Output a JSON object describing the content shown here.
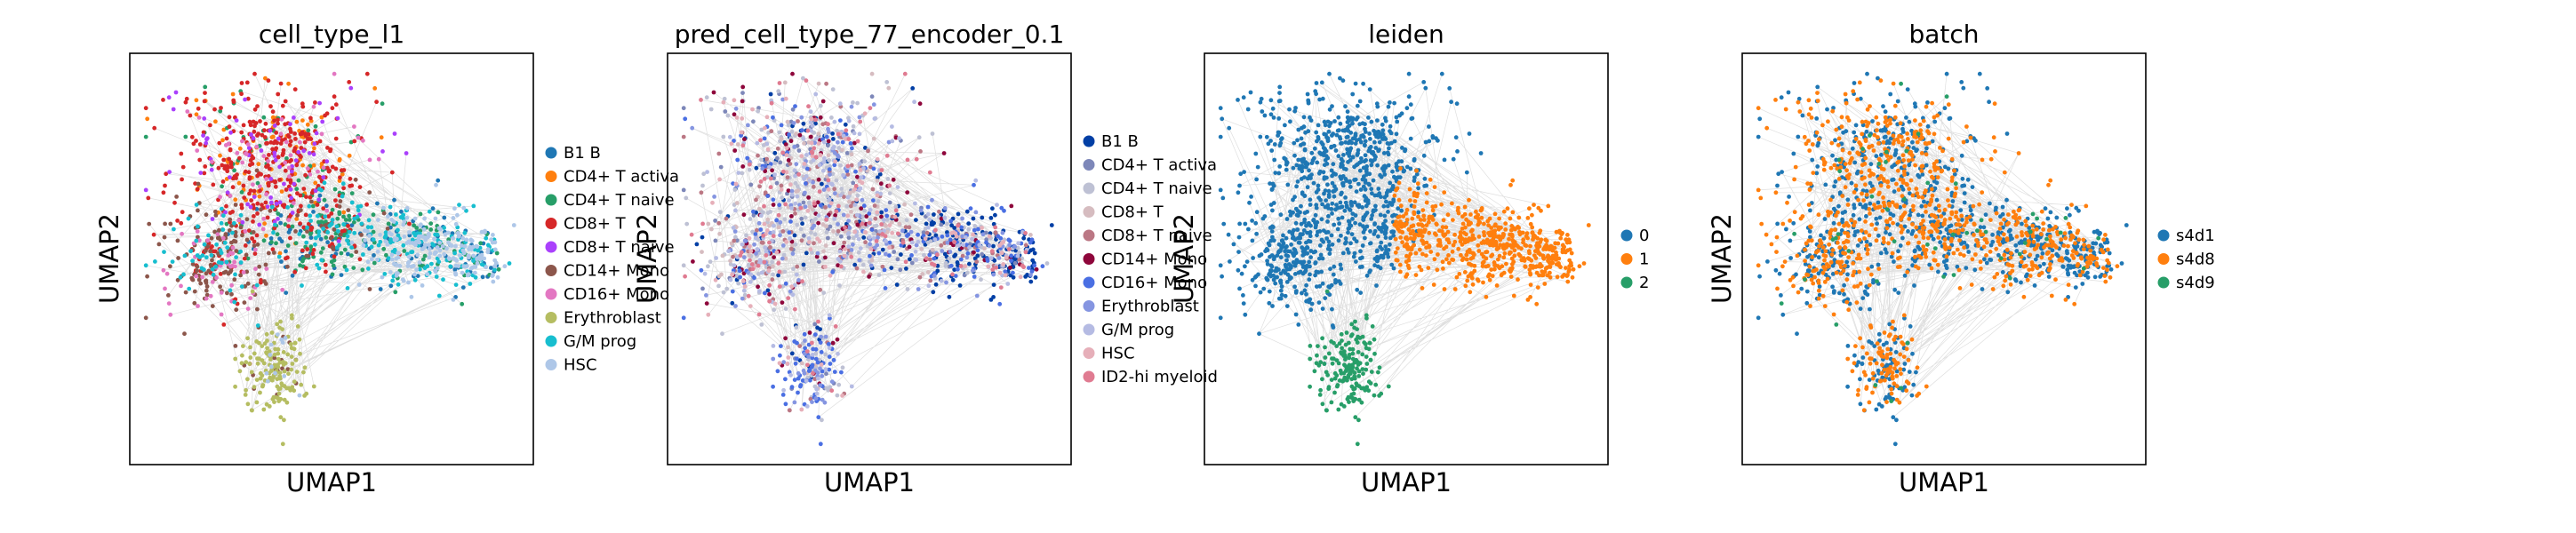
{
  "chart_data": [
    {
      "type": "scatter",
      "title": "cell_type_l1",
      "xlabel": "UMAP1",
      "ylabel": "UMAP2",
      "grid": false,
      "legend_position": "right",
      "legend": [
        {
          "label": "B1 B",
          "color": "#1f77b4"
        },
        {
          "label": "CD4+ T activa",
          "color": "#ff7f0e"
        },
        {
          "label": "CD4+ T naive",
          "color": "#279e68"
        },
        {
          "label": "CD8+ T",
          "color": "#d62728"
        },
        {
          "label": "CD8+ T naive",
          "color": "#aa40fc"
        },
        {
          "label": "CD14+ Mono",
          "color": "#8c564b"
        },
        {
          "label": "CD16+ Mono",
          "color": "#e377c2"
        },
        {
          "label": "Erythroblast",
          "color": "#b5bd61"
        },
        {
          "label": "G/M prog",
          "color": "#17becf"
        },
        {
          "label": "HSC",
          "color": "#aec7e8"
        }
      ]
    },
    {
      "type": "scatter",
      "title": "pred_cell_type_77_encoder_0.1",
      "xlabel": "UMAP1",
      "ylabel": "UMAP2",
      "grid": false,
      "legend_position": "right",
      "legend": [
        {
          "label": "B1 B",
          "color": "#023fa5"
        },
        {
          "label": "CD4+ T activa",
          "color": "#7d87b9"
        },
        {
          "label": "CD4+ T naive",
          "color": "#bec1d4"
        },
        {
          "label": "CD8+ T",
          "color": "#d6bcc0"
        },
        {
          "label": "CD8+ T naive",
          "color": "#bb7784"
        },
        {
          "label": "CD14+ Mono",
          "color": "#8e063b"
        },
        {
          "label": "CD16+ Mono",
          "color": "#4a6fe3"
        },
        {
          "label": "Erythroblast",
          "color": "#8595e1"
        },
        {
          "label": "G/M prog",
          "color": "#b5bbe3"
        },
        {
          "label": "HSC",
          "color": "#e6afb9"
        },
        {
          "label": "ID2-hi myeloid",
          "color": "#e07b91"
        }
      ]
    },
    {
      "type": "scatter",
      "title": "leiden",
      "xlabel": "UMAP1",
      "ylabel": "UMAP2",
      "grid": false,
      "legend_position": "right",
      "legend": [
        {
          "label": "0",
          "color": "#1f77b4"
        },
        {
          "label": "1",
          "color": "#ff7f0e"
        },
        {
          "label": "2",
          "color": "#279e68"
        }
      ]
    },
    {
      "type": "scatter",
      "title": "batch",
      "xlabel": "UMAP1",
      "ylabel": "UMAP2",
      "grid": false,
      "legend_position": "right",
      "legend": [
        {
          "label": "s4d1",
          "color": "#1f77b4"
        },
        {
          "label": "s4d8",
          "color": "#ff7f0e"
        },
        {
          "label": "s4d9",
          "color": "#279e68"
        }
      ]
    }
  ],
  "colors": {
    "edges": "#8c8c8c",
    "frame": "#000000",
    "background": "#ffffff"
  }
}
